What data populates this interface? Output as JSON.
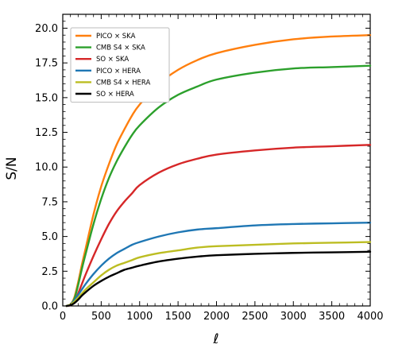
{
  "chart_data": {
    "type": "line",
    "title": "",
    "xlabel": "ℓ",
    "ylabel": "S/N",
    "xlim": [
      0,
      4000
    ],
    "ylim": [
      0,
      21
    ],
    "xticks": [
      0,
      500,
      1000,
      1500,
      2000,
      2500,
      3000,
      3500,
      4000
    ],
    "yticks": [
      0.0,
      2.5,
      5.0,
      7.5,
      10.0,
      12.5,
      15.0,
      17.5,
      20.0
    ],
    "xtick_labels": [
      "0",
      "500",
      "1000",
      "1500",
      "2000",
      "2500",
      "3000",
      "3500",
      "4000"
    ],
    "ytick_labels": [
      "0.0",
      "2.5",
      "5.0",
      "7.5",
      "10.0",
      "12.5",
      "15.0",
      "17.5",
      "20.0"
    ],
    "grid": false,
    "legend_position": "top-left",
    "x": [
      50,
      100,
      150,
      200,
      250,
      300,
      400,
      500,
      600,
      700,
      800,
      900,
      1000,
      1250,
      1500,
      1750,
      2000,
      2500,
      3000,
      3500,
      4000
    ],
    "series": [
      {
        "name": "PICO × SKA",
        "color": "#ff7f0e",
        "values": [
          0.0,
          0.1,
          0.6,
          1.7,
          3.0,
          4.2,
          6.6,
          8.6,
          10.2,
          11.6,
          12.7,
          13.7,
          14.5,
          16.0,
          17.0,
          17.7,
          18.2,
          18.8,
          19.2,
          19.4,
          19.5
        ]
      },
      {
        "name": "CMB S4 × SKA",
        "color": "#2ca02c",
        "values": [
          0.0,
          0.1,
          0.5,
          1.5,
          2.7,
          3.8,
          5.9,
          7.7,
          9.2,
          10.4,
          11.4,
          12.3,
          13.0,
          14.3,
          15.2,
          15.8,
          16.3,
          16.8,
          17.1,
          17.2,
          17.3
        ]
      },
      {
        "name": "SO × SKA",
        "color": "#d62728",
        "values": [
          0.0,
          0.05,
          0.3,
          0.9,
          1.6,
          2.3,
          3.6,
          4.8,
          5.9,
          6.8,
          7.5,
          8.1,
          8.7,
          9.6,
          10.2,
          10.6,
          10.9,
          11.2,
          11.4,
          11.5,
          11.6
        ]
      },
      {
        "name": "PICO × HERA",
        "color": "#1f77b4",
        "values": [
          0.0,
          0.1,
          0.4,
          0.8,
          1.2,
          1.6,
          2.3,
          2.9,
          3.4,
          3.8,
          4.1,
          4.4,
          4.6,
          5.0,
          5.3,
          5.5,
          5.6,
          5.8,
          5.9,
          5.95,
          6.0
        ]
      },
      {
        "name": "CMB S4 × HERA",
        "color": "#bcbd22",
        "values": [
          0.0,
          0.1,
          0.3,
          0.6,
          0.9,
          1.2,
          1.7,
          2.2,
          2.6,
          2.9,
          3.1,
          3.3,
          3.5,
          3.8,
          4.0,
          4.2,
          4.3,
          4.4,
          4.5,
          4.55,
          4.6
        ]
      },
      {
        "name": "SO × HERA",
        "color": "#000000",
        "values": [
          0.0,
          0.05,
          0.2,
          0.45,
          0.75,
          1.0,
          1.45,
          1.8,
          2.1,
          2.35,
          2.6,
          2.75,
          2.9,
          3.2,
          3.4,
          3.55,
          3.65,
          3.75,
          3.82,
          3.86,
          3.9
        ]
      }
    ]
  }
}
